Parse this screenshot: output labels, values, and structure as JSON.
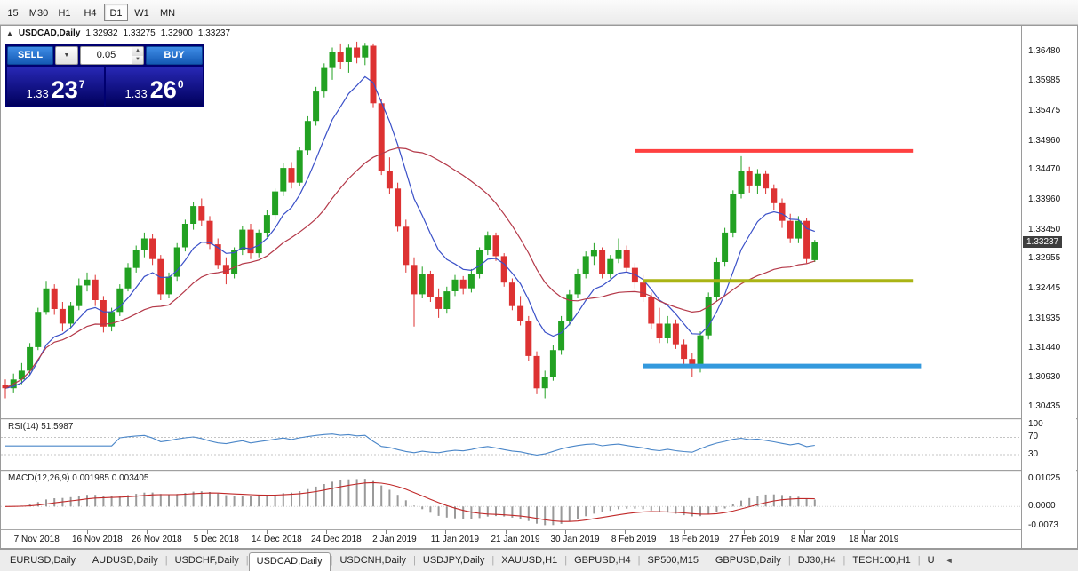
{
  "toolbar": {
    "timeframes": [
      "15",
      "M30",
      "H1",
      "H4",
      "D1",
      "W1",
      "MN"
    ],
    "active_timeframe": "D1"
  },
  "chart_header": {
    "symbol_title": "USDCAD,Daily",
    "open": "1.32932",
    "high": "1.33275",
    "low": "1.32900",
    "close": "1.33237"
  },
  "trade_panel": {
    "sell_label": "SELL",
    "buy_label": "BUY",
    "lot_size": "0.05",
    "sell_price": {
      "figure": "1.33",
      "pips": "23",
      "point": "7"
    },
    "buy_price": {
      "figure": "1.33",
      "pips": "26",
      "point": "0"
    }
  },
  "price_axis": {
    "labels": [
      "1.36480",
      "1.35985",
      "1.35475",
      "1.34960",
      "1.34470",
      "1.33960",
      "1.33450",
      "1.32955",
      "1.32445",
      "1.31935",
      "1.31440",
      "1.30930",
      "1.30435"
    ],
    "current_price": "1.33237"
  },
  "date_axis": [
    "7 Nov 2018",
    "16 Nov 2018",
    "26 Nov 2018",
    "5 Dec 2018",
    "14 Dec 2018",
    "24 Dec 2018",
    "2 Jan 2019",
    "11 Jan 2019",
    "21 Jan 2019",
    "30 Jan 2019",
    "8 Feb 2019",
    "18 Feb 2019",
    "27 Feb 2019",
    "8 Mar 2019",
    "18 Mar 2019"
  ],
  "rsi_panel": {
    "label": "RSI(14) 51.5987",
    "axis_labels": [
      "100",
      "70",
      "30"
    ],
    "levels": [
      100,
      70,
      30
    ]
  },
  "macd_panel": {
    "label": "MACD(12,26,9) 0.001985 0.003405",
    "axis_labels": [
      "0.01025",
      "0.0000",
      "-0.0073"
    ],
    "axis_values": [
      0.01025,
      0.0,
      -0.0073
    ]
  },
  "tabs": {
    "items": [
      "EURUSD,Daily",
      "AUDUSD,Daily",
      "USDCHF,Daily",
      "USDCAD,Daily",
      "USDCNH,Daily",
      "USDJPY,Daily",
      "XAUUSD,H1",
      "GBPUSD,H4",
      "SP500,M15",
      "GBPUSD,Daily",
      "DJ30,H4",
      "TECH100,H1",
      "U"
    ],
    "active": "USDCAD,Daily"
  },
  "icons": {
    "panel_toggle": "▲",
    "combo_arrow": "▼",
    "spin_up": "▲",
    "spin_down": "▼",
    "tab_scroll_left": "◄"
  },
  "chart_data": {
    "type": "candlestick",
    "symbol": "USDCAD",
    "timeframe": "Daily",
    "price_range": [
      1.3024,
      1.3692
    ],
    "colors": {
      "up": "#22a122",
      "down": "#dd3232",
      "ma_fast": "#3a50c8",
      "ma_slow": "#b43848",
      "rsi": "#4a86c8",
      "macd_hist": "#9a9a9a",
      "macd_signal": "#c02828",
      "resistance": "#ff4040",
      "mid_level": "#aab414",
      "support": "#3399dd"
    },
    "moving_averages": [
      {
        "name": "fast",
        "type": "ema",
        "period": 8
      },
      {
        "name": "slow",
        "type": "sma",
        "period": 21
      }
    ],
    "hlines": [
      {
        "name": "resistance",
        "price": 1.3479,
        "color": "#ff4040",
        "width": 4,
        "from_index": 77,
        "to_index": 111
      },
      {
        "name": "mid_level",
        "price": 1.3258,
        "color": "#aab414",
        "width": 4,
        "from_index": 78,
        "to_index": 111
      },
      {
        "name": "support",
        "price": 1.3113,
        "color": "#3399dd",
        "width": 5,
        "from_index": 78,
        "to_index": 112
      }
    ],
    "rsi_value": 51.5987,
    "macd_values": [
      0.001985,
      0.003405
    ],
    "candles": [
      [
        1.308,
        1.309,
        1.3058,
        1.3075
      ],
      [
        1.3075,
        1.31,
        1.3068,
        1.309
      ],
      [
        1.309,
        1.3118,
        1.3082,
        1.3105
      ],
      [
        1.3105,
        1.3152,
        1.3098,
        1.3145
      ],
      [
        1.3145,
        1.3212,
        1.314,
        1.3205
      ],
      [
        1.3205,
        1.3258,
        1.32,
        1.3245
      ],
      [
        1.3245,
        1.3252,
        1.32,
        1.321
      ],
      [
        1.321,
        1.3222,
        1.3172,
        1.3185
      ],
      [
        1.3185,
        1.3222,
        1.3178,
        1.3215
      ],
      [
        1.3215,
        1.3262,
        1.3208,
        1.325
      ],
      [
        1.325,
        1.3272,
        1.324,
        1.326
      ],
      [
        1.326,
        1.3268,
        1.3215,
        1.3225
      ],
      [
        1.3225,
        1.3232,
        1.317,
        1.318
      ],
      [
        1.318,
        1.3212,
        1.3172,
        1.3205
      ],
      [
        1.3205,
        1.3252,
        1.3198,
        1.3245
      ],
      [
        1.3245,
        1.3288,
        1.324,
        1.328
      ],
      [
        1.328,
        1.3318,
        1.3272,
        1.331
      ],
      [
        1.331,
        1.334,
        1.3298,
        1.333
      ],
      [
        1.333,
        1.3338,
        1.3285,
        1.3295
      ],
      [
        1.3295,
        1.3302,
        1.3225,
        1.3235
      ],
      [
        1.3235,
        1.3272,
        1.3228,
        1.3265
      ],
      [
        1.3265,
        1.3322,
        1.3258,
        1.3315
      ],
      [
        1.3315,
        1.3362,
        1.3308,
        1.3355
      ],
      [
        1.3355,
        1.3392,
        1.3345,
        1.3385
      ],
      [
        1.3385,
        1.3398,
        1.3352,
        1.336
      ],
      [
        1.336,
        1.3368,
        1.3312,
        1.332
      ],
      [
        1.332,
        1.333,
        1.3278,
        1.3285
      ],
      [
        1.3285,
        1.3298,
        1.3252,
        1.327
      ],
      [
        1.327,
        1.3315,
        1.3262,
        1.331
      ],
      [
        1.331,
        1.3352,
        1.3302,
        1.3345
      ],
      [
        1.3345,
        1.3355,
        1.3295,
        1.3305
      ],
      [
        1.3305,
        1.3345,
        1.3298,
        1.334
      ],
      [
        1.334,
        1.3378,
        1.3332,
        1.337
      ],
      [
        1.337,
        1.3415,
        1.3362,
        1.341
      ],
      [
        1.341,
        1.3458,
        1.3402,
        1.345
      ],
      [
        1.345,
        1.346,
        1.3415,
        1.3425
      ],
      [
        1.3425,
        1.3485,
        1.342,
        1.348
      ],
      [
        1.348,
        1.3538,
        1.3472,
        1.353
      ],
      [
        1.353,
        1.3588,
        1.3522,
        1.358
      ],
      [
        1.358,
        1.3628,
        1.357,
        1.362
      ],
      [
        1.362,
        1.3655,
        1.36,
        1.3648
      ],
      [
        1.3648,
        1.3662,
        1.3618,
        1.363
      ],
      [
        1.363,
        1.366,
        1.3612,
        1.3655
      ],
      [
        1.3655,
        1.3665,
        1.3628,
        1.3638
      ],
      [
        1.3638,
        1.3663,
        1.3625,
        1.3658
      ],
      [
        1.3658,
        1.3662,
        1.3552,
        1.356
      ],
      [
        1.356,
        1.3568,
        1.3438,
        1.3445
      ],
      [
        1.3445,
        1.3468,
        1.3405,
        1.3415
      ],
      [
        1.3415,
        1.3425,
        1.3342,
        1.335
      ],
      [
        1.335,
        1.3362,
        1.3272,
        1.3285
      ],
      [
        1.3285,
        1.3298,
        1.318,
        1.3235
      ],
      [
        1.3235,
        1.3282,
        1.3228,
        1.327
      ],
      [
        1.327,
        1.3275,
        1.3222,
        1.323
      ],
      [
        1.323,
        1.3245,
        1.3195,
        1.321
      ],
      [
        1.321,
        1.3248,
        1.3202,
        1.324
      ],
      [
        1.324,
        1.3268,
        1.3232,
        1.326
      ],
      [
        1.326,
        1.3266,
        1.3235,
        1.3245
      ],
      [
        1.3245,
        1.3278,
        1.3238,
        1.327
      ],
      [
        1.327,
        1.3315,
        1.3262,
        1.331
      ],
      [
        1.331,
        1.3342,
        1.3302,
        1.3335
      ],
      [
        1.3335,
        1.334,
        1.3292,
        1.33
      ],
      [
        1.33,
        1.3305,
        1.3248,
        1.3255
      ],
      [
        1.3255,
        1.3262,
        1.3208,
        1.3215
      ],
      [
        1.3215,
        1.3232,
        1.3182,
        1.319
      ],
      [
        1.319,
        1.3198,
        1.3122,
        1.313
      ],
      [
        1.313,
        1.3138,
        1.3065,
        1.3075
      ],
      [
        1.3075,
        1.3105,
        1.3058,
        1.3095
      ],
      [
        1.3095,
        1.3148,
        1.3088,
        1.314
      ],
      [
        1.314,
        1.3198,
        1.3132,
        1.319
      ],
      [
        1.319,
        1.3242,
        1.3182,
        1.3235
      ],
      [
        1.3235,
        1.3278,
        1.3228,
        1.327
      ],
      [
        1.327,
        1.3308,
        1.3262,
        1.33
      ],
      [
        1.33,
        1.3322,
        1.3285,
        1.331
      ],
      [
        1.331,
        1.3315,
        1.3262,
        1.327
      ],
      [
        1.327,
        1.3302,
        1.3262,
        1.3295
      ],
      [
        1.3295,
        1.333,
        1.3288,
        1.331
      ],
      [
        1.331,
        1.3318,
        1.3272,
        1.328
      ],
      [
        1.328,
        1.3288,
        1.3245,
        1.3255
      ],
      [
        1.3255,
        1.3268,
        1.3222,
        1.323
      ],
      [
        1.323,
        1.3238,
        1.3175,
        1.3185
      ],
      [
        1.3185,
        1.3212,
        1.3152,
        1.316
      ],
      [
        1.316,
        1.3198,
        1.3152,
        1.3185
      ],
      [
        1.3185,
        1.3192,
        1.3142,
        1.315
      ],
      [
        1.315,
        1.3158,
        1.3112,
        1.3125
      ],
      [
        1.3125,
        1.3135,
        1.3095,
        1.311
      ],
      [
        1.311,
        1.3172,
        1.3102,
        1.3165
      ],
      [
        1.3165,
        1.3238,
        1.3158,
        1.323
      ],
      [
        1.323,
        1.3298,
        1.3222,
        1.329
      ],
      [
        1.329,
        1.3348,
        1.3282,
        1.334
      ],
      [
        1.334,
        1.3412,
        1.3332,
        1.3405
      ],
      [
        1.3405,
        1.347,
        1.3398,
        1.3445
      ],
      [
        1.3445,
        1.3452,
        1.3408,
        1.342
      ],
      [
        1.342,
        1.3448,
        1.3405,
        1.344
      ],
      [
        1.344,
        1.3446,
        1.3405,
        1.3415
      ],
      [
        1.3415,
        1.3422,
        1.3378,
        1.339
      ],
      [
        1.339,
        1.3398,
        1.3348,
        1.336
      ],
      [
        1.336,
        1.3372,
        1.3322,
        1.333
      ],
      [
        1.333,
        1.3368,
        1.3322,
        1.336
      ],
      [
        1.336,
        1.3365,
        1.3288,
        1.3295
      ],
      [
        1.32932,
        1.33275,
        1.329,
        1.33237
      ]
    ]
  }
}
